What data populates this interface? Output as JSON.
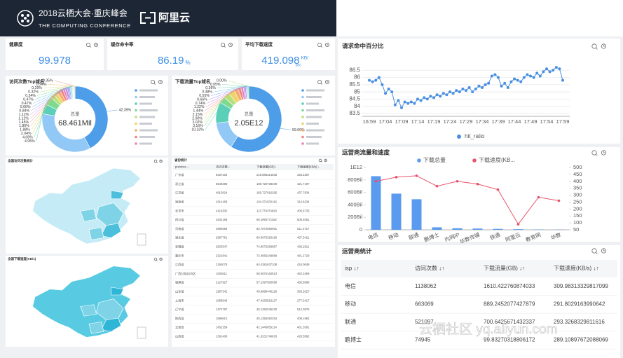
{
  "header": {
    "title": "2018云栖大会·重庆峰会",
    "subtitle": "THE COMPUTING CONFERENCE",
    "brand": "阿里云"
  },
  "kpis": [
    {
      "title": "健康度",
      "value": 99.978
    },
    {
      "title": "缓存命中率",
      "value": 86.19,
      "unit": "%"
    },
    {
      "title": "平均下载速度",
      "value": 419.098,
      "unit": "KB/",
      "unit2": "sec"
    }
  ],
  "chart_data": [
    {
      "type": "pie",
      "donut": true,
      "title": "访问次数Top域名",
      "center_label": "总量",
      "center_value": "68.461Mil",
      "values": [
        42.39,
        35.19,
        4.95,
        4.08,
        2.04,
        1.88,
        1.8,
        1.45,
        1.12,
        1.12,
        0.84,
        0.66,
        0.47,
        0.47,
        0.34,
        0.32,
        0.29,
        0.24,
        0.35
      ],
      "value_labels": [
        "42.39%",
        null,
        "4.95%",
        "4.08%",
        "2.04%",
        "1.88%",
        "1.80%",
        "1.45%",
        "1.12%",
        "1.12%",
        "0.84%",
        "0.66%",
        "0.47%",
        "0.47%",
        "0.34%",
        "0.32%",
        "0.29%",
        "0.24%",
        "0.35%"
      ],
      "colors": [
        "#4d9de8",
        "#92c8f6",
        "#5ccfb8",
        "#7fd98f",
        "#b7e07a",
        "#ecd46a",
        "#f4ac6c",
        "#ee8282",
        "#e684b7",
        "#c488e0",
        "#9d8ff0",
        "#7fa6f4",
        "#6cc6e8",
        "#5cd6c4",
        "#88dba2",
        "#b6e187",
        "#e2d87d",
        "#f0b87a",
        "#ea9a8c"
      ]
    },
    {
      "type": "pie",
      "donut": true,
      "title": "下载流量Top域名",
      "center_label": "总量",
      "center_value": "2.05E12",
      "values": [
        59.06,
        13.99,
        10.32,
        3.16,
        3.02,
        2.9,
        2.15,
        1.44,
        1.22,
        0.74,
        0.66,
        0.55,
        0.38,
        0.36,
        0.05,
        0.0
      ],
      "value_labels": [
        "59.06%",
        null,
        "10.32%",
        "3.16%",
        "3.02%",
        "2.90%",
        "2.15%",
        "1.44%",
        "1.22%",
        "0.74%",
        "0.66%",
        "0.55%",
        "0.38%",
        "0.36%",
        "0.05%",
        "0.00%"
      ],
      "colors": [
        "#4d9de8",
        "#92c8f6",
        "#5ccfb8",
        "#7fd98f",
        "#b7e07a",
        "#ecd46a",
        "#f4ac6c",
        "#ee8282",
        "#e684b7",
        "#c488e0",
        "#9d8ff0",
        "#7fa6f4",
        "#6cc6e8",
        "#5cd6c4",
        "#88dba2",
        "#b6e187"
      ]
    },
    {
      "type": "line",
      "title": "请求命中百分比",
      "categories": [
        "16:59",
        null,
        null,
        null,
        null,
        "17:04",
        null,
        null,
        null,
        null,
        "17:09",
        null,
        null,
        null,
        null,
        "17:14",
        null,
        null,
        null,
        null,
        "17:19",
        null,
        null,
        null,
        null,
        "17:24",
        null,
        null,
        null,
        null,
        "17:29",
        null,
        null,
        null,
        null,
        "17:34",
        null,
        null,
        null,
        null,
        "17:39",
        null,
        null,
        null,
        null,
        "17:44",
        null,
        null,
        null,
        null,
        "17:49",
        null,
        null,
        null,
        null,
        "17:54",
        null,
        null,
        null,
        null,
        "17:59"
      ],
      "series": [
        {
          "name": "hit_ratio",
          "color": "#4a90e2",
          "values": [
            85.8,
            85.7,
            85.8,
            86.0,
            85.5,
            84.9,
            85.2,
            85.0,
            84.1,
            84.4,
            83.9,
            84.3,
            84.2,
            84.3,
            84.2,
            84.5,
            84.4,
            84.6,
            84.5,
            84.7,
            84.6,
            84.8,
            84.7,
            84.9,
            84.8,
            85.0,
            84.9,
            85.1,
            85.0,
            85.2,
            85.1,
            85.3,
            85.0,
            85.2,
            85.4,
            85.3,
            85.5,
            85.6,
            86.1,
            86.2,
            86.0,
            85.4,
            85.6,
            85.3,
            85.7,
            85.9,
            85.8,
            85.7,
            86.0,
            86.2,
            86.1,
            86.0,
            86.3,
            86.1,
            86.4,
            86.6,
            86.4,
            86.5,
            86.7,
            86.6,
            85.8
          ]
        }
      ],
      "ylim": [
        83.5,
        87
      ],
      "yticks": [
        83.5,
        84,
        84.5,
        85,
        85.5,
        86,
        86.5
      ],
      "grid": true,
      "legend": "bottom"
    },
    {
      "type": "combo",
      "title": "运营商流量和速度",
      "categories": [
        "电信",
        "移动",
        "联通",
        "鹏博士",
        "内网IP",
        "华数传媒",
        "铁通",
        "阿里云",
        "教育网",
        "华数"
      ],
      "series": [
        {
          "name": "下载总量",
          "type": "bar",
          "color": "#5b9bef",
          "values": [
            860000000000,
            580000000000,
            490000000000,
            40000000000,
            25000000000,
            20000000000,
            15000000000,
            10000000000,
            5000000000,
            3000000000
          ]
        },
        {
          "name": "下载速度(KB...",
          "type": "line",
          "color": "#e8546b",
          "axis": "y2",
          "values": [
            400,
            430,
            440,
            365,
            400,
            380,
            340,
            90,
            285,
            260
          ]
        }
      ],
      "ylim": [
        0,
        1000000000000
      ],
      "yticks": [
        0,
        {
          "value": 200000000000,
          "label": "200Bil"
        },
        {
          "value": 400000000000,
          "label": "400Bil"
        },
        {
          "value": 600000000000,
          "label": "600Bil"
        },
        {
          "value": 800000000000,
          "label": "800Bil"
        },
        {
          "value": 1000000000000,
          "label": "1E12"
        }
      ],
      "y2lim": [
        50,
        500
      ],
      "y2ticks": [
        50,
        100,
        150,
        200,
        250,
        300,
        350,
        400,
        450,
        500
      ],
      "legend": "top"
    }
  ],
  "maps": [
    {
      "title": "全国访问次数统计"
    },
    {
      "title": "全国下载速度(KB/s)"
    }
  ],
  "province_table": {
    "title": "省份统计",
    "columns": [
      "province ↓",
      "访问次数 ↓",
      "下载流量(GB) ↓",
      "下载速度(KB/s) ↓"
    ],
    "rows": [
      [
        "广东省",
        "8437434",
        "218.685314638",
        "345.2267"
      ],
      [
        "浙江省",
        "6549268",
        "189.720738409",
        "421.7197"
      ],
      [
        "江苏省",
        "4813824",
        "169.727016295",
        "437.7834"
      ],
      [
        "湖南省",
        "4314168",
        "134.371032116",
        "314.8234"
      ],
      [
        "北京市",
        "4116330",
        "113.779374628",
        "405.6733"
      ],
      [
        "四川省",
        "3402186",
        "90.1993771182",
        "509.4051"
      ],
      [
        "河南省",
        "2993659",
        "82.7072050091",
        "511.4727"
      ],
      [
        "湖北省",
        "2587761",
        "80.0673320169",
        "457.3421"
      ],
      [
        "安徽省",
        "2503547",
        "74.8073268857",
        "436.2511"
      ],
      [
        "重庆市",
        "2321841",
        "72.0656249989",
        "461.2729"
      ],
      [
        "江西省",
        "2193075",
        "64.4381637108",
        "416.0049"
      ],
      [
        "广西壮族自治区",
        "1933611",
        "58.0675164513",
        "462.3459"
      ],
      [
        "福建省",
        "2127927",
        "57.2397560058",
        "455.6899"
      ],
      [
        "山东省",
        "1957342",
        "49.6898446126",
        "383.2027"
      ],
      [
        "上海市",
        "1858846",
        "47.4263518127",
        "277.3417"
      ],
      [
        "辽宁省",
        "1472787",
        "46.1353245230",
        "512.0575"
      ],
      [
        "陕西省",
        "1569612",
        "45.1356352253",
        "408.1962"
      ],
      [
        "云南省",
        "1452259",
        "42.1445855114",
        "461.2891"
      ],
      [
        "山西省",
        "1391406",
        "41.0231746633",
        "428.5582"
      ]
    ]
  },
  "isp_table": {
    "title": "运营商统计",
    "columns": [
      "isp ↓↑",
      "访问次数 ↓↑",
      "下载流量(GB) ↓↑",
      "下载速度(KB/s) ↓↑"
    ],
    "rows": [
      [
        "电信",
        "1138062",
        "1610.422760874033",
        "309.98313329817099"
      ],
      [
        "移动",
        "663069",
        "889.2452077427879",
        "291.8029163990642"
      ],
      [
        "联通",
        "521097",
        "700.6425671432337",
        "293.3268329811616"
      ],
      [
        "鹏博士",
        "74945",
        "99.83270318806172",
        "289.10897672088069"
      ]
    ]
  },
  "watermark": "云栖社区 yq.aliyun.com"
}
